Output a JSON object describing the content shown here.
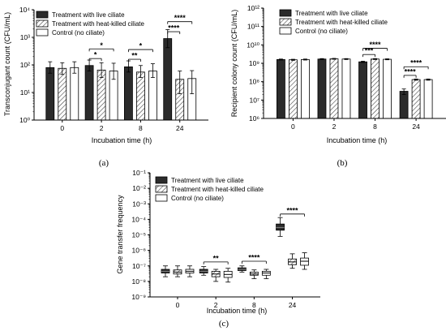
{
  "chart_data": [
    {
      "type": "bar",
      "panel_label": "(a)",
      "ylabel": "Transconjugant count (CFU/mL)",
      "xlabel": "Incubation time (h)",
      "yscale": "log",
      "ylim_exp": [
        0,
        4
      ],
      "ytick_labels": [
        "10⁰",
        "10¹",
        "10²",
        "10³",
        "10⁴"
      ],
      "categories": [
        "0",
        "2",
        "8",
        "24"
      ],
      "series": [
        {
          "name": "Treatment with live ciliate",
          "values": [
            80,
            95,
            85,
            900
          ],
          "err_hi": [
            130,
            150,
            140,
            1900
          ],
          "err_lo": [
            50,
            60,
            55,
            420
          ]
        },
        {
          "name": "Treatment with heat-killed ciliate",
          "values": [
            75,
            65,
            55,
            30
          ],
          "err_hi": [
            120,
            120,
            95,
            60
          ],
          "err_lo": [
            45,
            35,
            35,
            9
          ]
        },
        {
          "name": "Control (no ciliate)",
          "values": [
            80,
            60,
            60,
            32
          ],
          "err_hi": [
            130,
            115,
            110,
            62
          ],
          "err_lo": [
            50,
            30,
            35,
            9
          ]
        }
      ],
      "significance": [
        {
          "text": "*",
          "cat": 1,
          "from": 0,
          "to": 1,
          "level": 170
        },
        {
          "text": "*",
          "cat": 1,
          "from": 0,
          "to": 2,
          "level": 380
        },
        {
          "text": "**",
          "cat": 2,
          "from": 0,
          "to": 1,
          "level": 160
        },
        {
          "text": "*",
          "cat": 2,
          "from": 0,
          "to": 2,
          "level": 360
        },
        {
          "text": "****",
          "cat": 3,
          "from": 0,
          "to": 1,
          "level": 1600
        },
        {
          "text": "****",
          "cat": 3,
          "from": 0,
          "to": 2,
          "level": 3700
        }
      ]
    },
    {
      "type": "bar",
      "panel_label": "(b)",
      "ylabel": "Recipient colony count (CFU/mL)",
      "xlabel": "Incubation time (h)",
      "yscale": "log",
      "ylim_exp": [
        6,
        12
      ],
      "ytick_labels": [
        "10⁶",
        "10⁷",
        "10⁸",
        "10⁹",
        "10¹⁰",
        "10¹¹",
        "10¹²"
      ],
      "categories": [
        "0",
        "2",
        "8",
        "24"
      ],
      "series": [
        {
          "name": "Treatment with live ciliate",
          "values": [
            1600000000.0,
            1700000000.0,
            1200000000.0,
            30000000.0
          ],
          "err_hi": [
            1700000000.0,
            1800000000.0,
            1300000000.0,
            40000000.0
          ],
          "err_lo": [
            1500000000.0,
            1600000000.0,
            1100000000.0,
            20000000.0
          ]
        },
        {
          "name": "Treatment with heat-killed ciliate",
          "values": [
            1550000000.0,
            1750000000.0,
            1700000000.0,
            130000000.0
          ],
          "err_hi": [
            1650000000.0,
            1850000000.0,
            1800000000.0,
            140000000.0
          ],
          "err_lo": [
            1450000000.0,
            1650000000.0,
            1600000000.0,
            120000000.0
          ]
        },
        {
          "name": "Control (no ciliate)",
          "values": [
            1600000000.0,
            1700000000.0,
            1650000000.0,
            130000000.0
          ],
          "err_hi": [
            1700000000.0,
            1800000000.0,
            1750000000.0,
            140000000.0
          ],
          "err_lo": [
            1500000000.0,
            1600000000.0,
            1550000000.0,
            120000000.0
          ]
        }
      ],
      "significance": [
        {
          "text": "***",
          "cat": 2,
          "from": 0,
          "to": 1,
          "level": 3000000000.0
        },
        {
          "text": "****",
          "cat": 2,
          "from": 0,
          "to": 2,
          "level": 6500000000.0
        },
        {
          "text": "****",
          "cat": 3,
          "from": 0,
          "to": 1,
          "level": 220000000.0
        },
        {
          "text": "****",
          "cat": 3,
          "from": 0,
          "to": 2,
          "level": 650000000.0
        }
      ]
    },
    {
      "type": "box",
      "panel_label": "(c)",
      "ylabel": "Gene transfer frequency",
      "xlabel": "Incubation time (h)",
      "yscale": "log",
      "ylim_exp": [
        -9,
        -1
      ],
      "ytick_labels": [
        "10⁻⁹",
        "10⁻⁸",
        "10⁻⁷",
        "10⁻⁶",
        "10⁻⁵",
        "10⁻⁴",
        "10⁻³",
        "10⁻²",
        "10⁻¹"
      ],
      "categories": [
        "0",
        "2",
        "8",
        "24"
      ],
      "series": [
        {
          "name": "Treatment with live ciliate",
          "boxes": [
            {
              "min": 2e-08,
              "q1": 3.5e-08,
              "median": 4.5e-08,
              "q3": 6e-08,
              "max": 1e-07
            },
            {
              "min": 2.5e-08,
              "q1": 3.5e-08,
              "median": 4.5e-08,
              "q3": 6e-08,
              "max": 9e-08
            },
            {
              "min": 4e-08,
              "q1": 5e-08,
              "median": 6e-08,
              "q3": 7.5e-08,
              "max": 1e-07
            },
            {
              "min": 8e-06,
              "q1": 2e-05,
              "median": 3e-05,
              "q3": 5e-05,
              "max": 0.00013
            }
          ]
        },
        {
          "name": "Treatment with heat-killed ciliate",
          "boxes": [
            {
              "min": 2e-08,
              "q1": 3e-08,
              "median": 4e-08,
              "q3": 5.5e-08,
              "max": 1e-07
            },
            {
              "min": 1e-08,
              "q1": 2e-08,
              "median": 3e-08,
              "q3": 4.5e-08,
              "max": 6e-08
            },
            {
              "min": 1.5e-08,
              "q1": 2.5e-08,
              "median": 3e-08,
              "q3": 4e-08,
              "max": 5.5e-08
            },
            {
              "min": 7e-08,
              "q1": 1.2e-07,
              "median": 1.8e-07,
              "q3": 2.8e-07,
              "max": 6e-07
            }
          ]
        },
        {
          "name": "Control (no ciliate)",
          "boxes": [
            {
              "min": 2e-08,
              "q1": 3.5e-08,
              "median": 4.5e-08,
              "q3": 6e-08,
              "max": 1e-07
            },
            {
              "min": 9e-09,
              "q1": 1.8e-08,
              "median": 2.8e-08,
              "q3": 4.5e-08,
              "max": 7e-08
            },
            {
              "min": 1.5e-08,
              "q1": 2.5e-08,
              "median": 3.5e-08,
              "q3": 4.5e-08,
              "max": 6e-08
            },
            {
              "min": 6e-08,
              "q1": 1.1e-07,
              "median": 2e-07,
              "q3": 3.2e-07,
              "max": 7e-07
            }
          ]
        }
      ],
      "significance": [
        {
          "text": "**",
          "cat": 1,
          "from": 0,
          "to": 2,
          "level": 1.8e-07
        },
        {
          "text": "****",
          "cat": 2,
          "from": 0,
          "to": 2,
          "level": 2e-07
        },
        {
          "text": "****",
          "cat": 3,
          "from": 0,
          "to": 2,
          "level": 0.00022
        }
      ]
    }
  ]
}
